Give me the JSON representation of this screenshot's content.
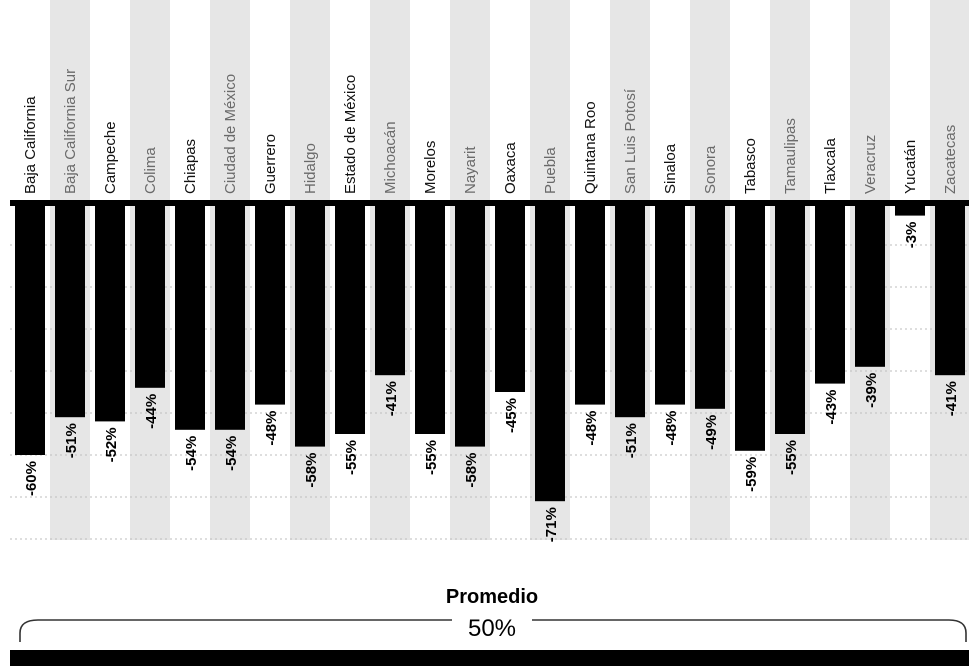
{
  "chart_data": {
    "type": "bar",
    "orientation": "vertical-negative",
    "categories": [
      "Baja California",
      "Baja California Sur",
      "Campeche",
      "Colima",
      "Chiapas",
      "Ciudad de México",
      "Guerrero",
      "Hidalgo",
      "Estado de México",
      "Michoacán",
      "Morelos",
      "Nayarit",
      "Oaxaca",
      "Puebla",
      "Quintana Roo",
      "San Luis Potosí",
      "Sinaloa",
      "Sonora",
      "Tabasco",
      "Tamaulipas",
      "Tlaxcala",
      "Veracruz",
      "Yucatán",
      "Zacatecas"
    ],
    "values": [
      -60,
      -51,
      -52,
      -44,
      -54,
      -54,
      -48,
      -58,
      -55,
      -41,
      -55,
      -58,
      -45,
      -71,
      -48,
      -51,
      -48,
      -49,
      -59,
      -55,
      -43,
      -39,
      -3,
      -41
    ],
    "value_labels": [
      "-60%",
      "-51%",
      "-52%",
      "-44%",
      "-54%",
      "-54%",
      "-48%",
      "-58%",
      "-55%",
      "-41%",
      "-55%",
      "-58%",
      "-45%",
      "-71%",
      "-48%",
      "-51%",
      "-48%",
      "-49%",
      "-59%",
      "-55%",
      "-43%",
      "-39%",
      "-3%",
      "-41%"
    ],
    "ylim": [
      -80,
      0
    ],
    "grid": true,
    "bar_color": "#000000",
    "stripe_color": "#e6e6e6",
    "grid_color": "#bdbdbd",
    "average": {
      "title": "Promedio",
      "label": "50%",
      "value": 50
    }
  }
}
